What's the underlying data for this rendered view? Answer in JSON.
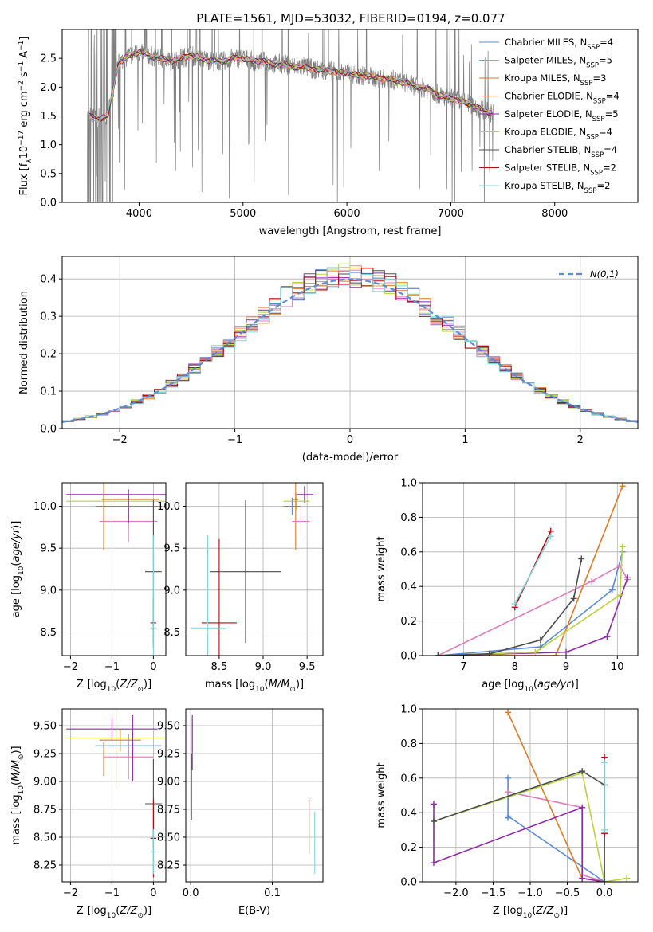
{
  "figure_title": "PLATE=1561, MJD=53032, FIBERID=0194, z=0.077",
  "colors": {
    "Chabrier MILES": "#5b8bd6",
    "Salpeter MILES": "#e07bbd",
    "Kroupa MILES": "#e07a1f",
    "Chabrier ELODIE": "#f08a6a",
    "Salpeter ELODIE": "#8e2aaa",
    "Kroupa ELODIE": "#b8d43a",
    "Chabrier STELIB": "#4d4d4d",
    "Salpeter STELIB": "#b00d14",
    "Kroupa STELIB": "#7fd6df",
    "data": "#808080",
    "normal": "#5b8bd6"
  },
  "chart_data": [
    {
      "type": "line",
      "id": "spectrum",
      "title": "PLATE=1561, MJD=53032, FIBERID=0194, z=0.077",
      "xlabel": "wavelength [Angstrom, rest frame]",
      "ylabel": "Flux [f_λ 10^-17 erg cm^-2 s^-1 A^-1]",
      "xlim": [
        3260,
        8800
      ],
      "ylim": [
        0,
        3.0
      ],
      "xticks": [
        4000,
        5000,
        6000,
        7000,
        8000
      ],
      "yticks": [
        0.0,
        0.5,
        1.0,
        1.5,
        2.0,
        2.5
      ],
      "legend_position": "upper right",
      "grid": false,
      "legend": [
        {
          "main": "Chabrier MILES, N",
          "sub": "SSP",
          "val": "=4",
          "model": "Chabrier MILES"
        },
        {
          "main": "Salpeter MILES, N",
          "sub": "SSP",
          "val": "=5",
          "model": "Salpeter MILES"
        },
        {
          "main": "Kroupa MILES, N",
          "sub": "SSP",
          "val": "=3",
          "model": "Kroupa MILES"
        },
        {
          "main": "Chabrier ELODIE, N",
          "sub": "SSP",
          "val": "=4",
          "model": "Chabrier ELODIE"
        },
        {
          "main": "Salpeter ELODIE, N",
          "sub": "SSP",
          "val": "=5",
          "model": "Salpeter ELODIE"
        },
        {
          "main": "Kroupa ELODIE, N",
          "sub": "SSP",
          "val": "=4",
          "model": "Kroupa ELODIE"
        },
        {
          "main": "Chabrier STELIB, N",
          "sub": "SSP",
          "val": "=4",
          "model": "Chabrier STELIB"
        },
        {
          "main": "Salpeter STELIB, N",
          "sub": "SSP",
          "val": "=2",
          "model": "Salpeter STELIB"
        },
        {
          "main": "Kroupa STELIB, N",
          "sub": "SSP",
          "val": "=2",
          "model": "Kroupa STELIB"
        }
      ],
      "data_series": {
        "name": "data",
        "x": [
          3500,
          3600,
          3700,
          3800,
          3900,
          4000,
          4100,
          4200,
          4300,
          4400,
          4500,
          4600,
          4700,
          4800,
          4900,
          5000,
          5100,
          5200,
          5300,
          5400,
          5500,
          5600,
          5700,
          5800,
          5900,
          6000,
          6100,
          6200,
          6300,
          6400,
          6500,
          6600,
          6700,
          6800,
          6900,
          7000,
          7100,
          7200,
          7300,
          7400
        ],
        "y": [
          1.5,
          1.45,
          1.5,
          2.4,
          2.55,
          2.6,
          2.55,
          2.5,
          2.45,
          2.5,
          2.55,
          2.5,
          2.45,
          2.45,
          2.5,
          2.5,
          2.45,
          2.45,
          2.4,
          2.4,
          2.35,
          2.35,
          2.3,
          2.3,
          2.25,
          2.25,
          2.2,
          2.2,
          2.15,
          2.15,
          2.1,
          2.05,
          2.0,
          1.95,
          1.85,
          1.8,
          1.75,
          1.7,
          1.6,
          1.55
        ]
      },
      "model_x_range": [
        3520,
        8450
      ]
    },
    {
      "type": "histogram",
      "id": "residuals",
      "xlabel": "(data-model)/error",
      "ylabel": "Normed distribution",
      "xlim": [
        -2.5,
        2.5
      ],
      "ylim": [
        0,
        0.46
      ],
      "xticks": [
        -2,
        -1,
        0,
        1,
        2
      ],
      "yticks": [
        0.0,
        0.1,
        0.2,
        0.3,
        0.4
      ],
      "grid": true,
      "bin_width": 0.1,
      "reference": {
        "label": "N(0,1)",
        "mean": 0,
        "sigma": 1
      },
      "legend_position": "upper right"
    },
    {
      "type": "scatter",
      "id": "age-vs-Z",
      "xlabel": "Z [log10(Z/Z⊙)]",
      "ylabel": "age [log10(age/yr)]",
      "xlim": [
        -2.2,
        0.3
      ],
      "ylim": [
        8.22,
        10.28
      ],
      "xticks": [
        -2,
        -1,
        0
      ],
      "yticks": [
        8.5,
        9.0,
        9.5,
        10.0
      ],
      "grid": true,
      "points": [
        {
          "model": "Salpeter ELODIE",
          "x": -0.9,
          "y": 10.14,
          "xerr": 1.2,
          "yerr": 0
        },
        {
          "model": "Kroupa ELODIE",
          "x": -0.9,
          "y": 10.06,
          "xerr": 1.2,
          "yerr": 0
        },
        {
          "model": "Kroupa MILES",
          "x": -0.55,
          "y": 10.08,
          "xerr": 0.7,
          "yerr": 0
        },
        {
          "model": "Chabrier MILES",
          "x": -0.6,
          "y": 10.0,
          "xerr": 0.8,
          "yerr": 0.15
        },
        {
          "model": "Salpeter MILES",
          "x": -0.6,
          "y": 9.82,
          "xerr": 0.7,
          "yerr": 0.25
        },
        {
          "model": "Kroupa MILES",
          "x": -1.2,
          "y": 10.0,
          "xerr": 0,
          "yerr": 0.52
        },
        {
          "model": "Salpeter ELODIE",
          "x": -0.6,
          "y": 10.0,
          "xerr": 0,
          "yerr": 0.2
        },
        {
          "model": "Chabrier STELIB",
          "x": 0.0,
          "y": 9.22,
          "xerr": 0.2,
          "yerr": 0.85
        },
        {
          "model": "Salpeter STELIB",
          "x": 0.0,
          "y": 8.61,
          "xerr": 0.07,
          "yerr": 0.3
        },
        {
          "model": "Kroupa STELIB",
          "x": 0.0,
          "y": 8.55,
          "xerr": 0.07,
          "yerr": 1.1
        }
      ]
    },
    {
      "type": "scatter",
      "id": "age-vs-mass",
      "xlabel": "mass [log10(M/M⊙)]",
      "ylabel": "",
      "xlim": [
        8.12,
        9.68
      ],
      "ylim": [
        8.22,
        10.28
      ],
      "xticks": [
        8.5,
        9.0,
        9.5
      ],
      "yticks": [
        8.5,
        9.0,
        9.5,
        10.0
      ],
      "grid": true,
      "points": [
        {
          "model": "Salpeter ELODIE",
          "x": 9.47,
          "y": 10.14,
          "xerr": 0.1,
          "yerr": 0.1
        },
        {
          "model": "Kroupa ELODIE",
          "x": 9.38,
          "y": 10.06,
          "xerr": 0.15,
          "yerr": 0.1
        },
        {
          "model": "Chabrier MILES",
          "x": 9.33,
          "y": 10.0,
          "xerr": 0.1,
          "yerr": 0.1
        },
        {
          "model": "Kroupa MILES",
          "x": 9.37,
          "y": 10.08,
          "xerr": 0.03,
          "yerr": 0.6
        },
        {
          "model": "Salpeter MILES",
          "x": 9.43,
          "y": 9.82,
          "xerr": 0.1,
          "yerr": 0.18
        },
        {
          "model": "Chabrier STELIB",
          "x": 8.8,
          "y": 9.22,
          "xerr": 0.4,
          "yerr": 0.85
        },
        {
          "model": "Salpeter STELIB",
          "x": 8.5,
          "y": 8.61,
          "xerr": 0.2,
          "yerr": 1.0
        },
        {
          "model": "Kroupa STELIB",
          "x": 8.37,
          "y": 8.55,
          "xerr": 0.2,
          "yerr": 1.1
        }
      ]
    },
    {
      "type": "line",
      "id": "massweight-vs-age",
      "xlabel": "age [log10(age/yr)]",
      "ylabel": "mass weight",
      "xlim": [
        6.2,
        10.4
      ],
      "ylim": [
        0,
        1.0
      ],
      "xticks": [
        7,
        8,
        9,
        10
      ],
      "yticks": [
        0.0,
        0.2,
        0.4,
        0.6,
        0.8,
        1.0
      ],
      "grid": true,
      "series": [
        {
          "model": "Chabrier MILES",
          "x": [
            6.5,
            8.5,
            9.9,
            10.1
          ],
          "y": [
            0.0,
            0.05,
            0.38,
            0.6
          ]
        },
        {
          "model": "Salpeter MILES",
          "x": [
            6.5,
            9.5,
            10.05,
            10.2
          ],
          "y": [
            0.0,
            0.43,
            0.52,
            0.44
          ]
        },
        {
          "model": "Kroupa MILES",
          "x": [
            6.5,
            8.8,
            10.1
          ],
          "y": [
            0.0,
            0.0,
            0.98
          ]
        },
        {
          "model": "Salpeter ELODIE",
          "x": [
            6.5,
            9.0,
            9.8,
            10.2
          ],
          "y": [
            0.0,
            0.02,
            0.11,
            0.45
          ]
        },
        {
          "model": "Kroupa ELODIE",
          "x": [
            6.5,
            8.4,
            10.05,
            10.1
          ],
          "y": [
            0.0,
            0.02,
            0.35,
            0.63
          ]
        },
        {
          "model": "Chabrier STELIB",
          "x": [
            6.5,
            7.5,
            8.5,
            9.15,
            9.3
          ],
          "y": [
            0.0,
            0.01,
            0.09,
            0.33,
            0.56
          ]
        },
        {
          "model": "Salpeter STELIB",
          "x": [
            8.0,
            8.7
          ],
          "y": [
            0.28,
            0.72
          ]
        },
        {
          "model": "Kroupa STELIB",
          "x": [
            8.0,
            8.7
          ],
          "y": [
            0.3,
            0.69
          ]
        }
      ]
    },
    {
      "type": "scatter",
      "id": "mass-vs-Z",
      "xlabel": "Z [log10(Z/Z⊙)]",
      "ylabel": "mass [log10(M/M⊙)]",
      "xlim": [
        -2.2,
        0.3
      ],
      "ylim": [
        8.1,
        9.65
      ],
      "xticks": [
        -2,
        -1,
        0
      ],
      "yticks": [
        8.25,
        8.5,
        8.75,
        9.0,
        9.25,
        9.5
      ],
      "grid": true,
      "points": [
        {
          "model": "Salpeter ELODIE",
          "x": -1.0,
          "y": 9.47,
          "xerr": 1.1,
          "yerr": 0.1
        },
        {
          "model": "Kroupa ELODIE",
          "x": -0.9,
          "y": 9.39,
          "xerr": 1.2,
          "yerr": 0.45
        },
        {
          "model": "Kroupa MILES",
          "x": -0.8,
          "y": 9.37,
          "xerr": 0.5,
          "yerr": 0.1
        },
        {
          "model": "Chabrier MILES",
          "x": -0.6,
          "y": 9.32,
          "xerr": 0.8,
          "yerr": 0.1
        },
        {
          "model": "Salpeter MILES",
          "x": -0.6,
          "y": 9.22,
          "xerr": 0.6,
          "yerr": 0.2
        },
        {
          "model": "Kroupa MILES",
          "x": -1.2,
          "y": 9.2,
          "xerr": 0,
          "yerr": 0.15
        },
        {
          "model": "Salpeter ELODIE",
          "x": -0.5,
          "y": 9.3,
          "xerr": 0,
          "yerr": 0.3
        },
        {
          "model": "Chabrier STELIB",
          "x": 0.0,
          "y": 8.8,
          "xerr": 0.2,
          "yerr": 0.4
        },
        {
          "model": "Salpeter STELIB",
          "x": 0.0,
          "y": 8.49,
          "xerr": 0.07,
          "yerr": 0.35
        },
        {
          "model": "Kroupa STELIB",
          "x": 0.0,
          "y": 8.37,
          "xerr": 0.07,
          "yerr": 0.2
        }
      ]
    },
    {
      "type": "scatter",
      "id": "mass-vs-ebv",
      "xlabel": "E(B-V)",
      "ylabel": "",
      "xlim": [
        -0.006,
        0.162
      ],
      "ylim": [
        8.1,
        9.65
      ],
      "xticks": [
        0.0,
        0.1
      ],
      "yticks": [
        8.25,
        8.5,
        8.75,
        9.0,
        9.25,
        9.5
      ],
      "grid": true,
      "points": [
        {
          "model": "Salpeter MILES",
          "x": 0.002,
          "y": 9.42,
          "xerr": 0,
          "yerr": 0.15
        },
        {
          "model": "Salpeter ELODIE",
          "x": 0.002,
          "y": 9.35,
          "xerr": 0,
          "yerr": 0.25
        },
        {
          "model": "Chabrier STELIB",
          "x": 0.001,
          "y": 8.95,
          "xerr": 0,
          "yerr": 0.3
        },
        {
          "model": "Salpeter STELIB",
          "x": 0.145,
          "y": 8.6,
          "xerr": 0,
          "yerr": 0.25
        },
        {
          "model": "Kroupa STELIB",
          "x": 0.152,
          "y": 8.45,
          "xerr": 0,
          "yerr": 0.28
        }
      ]
    },
    {
      "type": "line",
      "id": "massweight-vs-Z",
      "xlabel": "Z [log10(Z/Z⊙)]",
      "ylabel": "mass weight",
      "xlim": [
        -2.45,
        0.45
      ],
      "ylim": [
        0,
        1.0
      ],
      "xticks": [
        -2.0,
        -1.5,
        -1.0,
        -0.5,
        0.0
      ],
      "yticks": [
        0.0,
        0.2,
        0.4,
        0.6,
        0.8,
        1.0
      ],
      "grid": true,
      "series": [
        {
          "model": "Chabrier MILES",
          "x": [
            -1.3,
            -1.3,
            -1.3,
            0.0
          ],
          "y": [
            0.6,
            0.37,
            0.38,
            0.0
          ]
        },
        {
          "model": "Salpeter MILES",
          "x": [
            -1.3,
            -0.3,
            -0.3,
            0.0
          ],
          "y": [
            0.52,
            0.43,
            0.04,
            0.0
          ]
        },
        {
          "model": "Kroupa MILES",
          "x": [
            -1.3,
            -0.3,
            0.0
          ],
          "y": [
            0.98,
            0.02,
            0.0
          ]
        },
        {
          "model": "Salpeter ELODIE",
          "x": [
            -2.3,
            -2.3,
            -0.3,
            -0.3,
            0.0
          ],
          "y": [
            0.45,
            0.11,
            0.43,
            0.02,
            0.0
          ]
        },
        {
          "model": "Kroupa ELODIE",
          "x": [
            -2.3,
            -0.3,
            0.0,
            0.3
          ],
          "y": [
            0.35,
            0.63,
            0.0,
            0.02
          ]
        },
        {
          "model": "Chabrier STELIB",
          "x": [
            -2.3,
            -0.3,
            0.0,
            0.0
          ],
          "y": [
            0.35,
            0.64,
            0.56,
            0.0
          ]
        },
        {
          "model": "Salpeter STELIB",
          "x": [
            0.0,
            0.0
          ],
          "y": [
            0.72,
            0.28
          ]
        },
        {
          "model": "Kroupa STELIB",
          "x": [
            0.0,
            0.0
          ],
          "y": [
            0.69,
            0.3
          ]
        }
      ]
    }
  ]
}
